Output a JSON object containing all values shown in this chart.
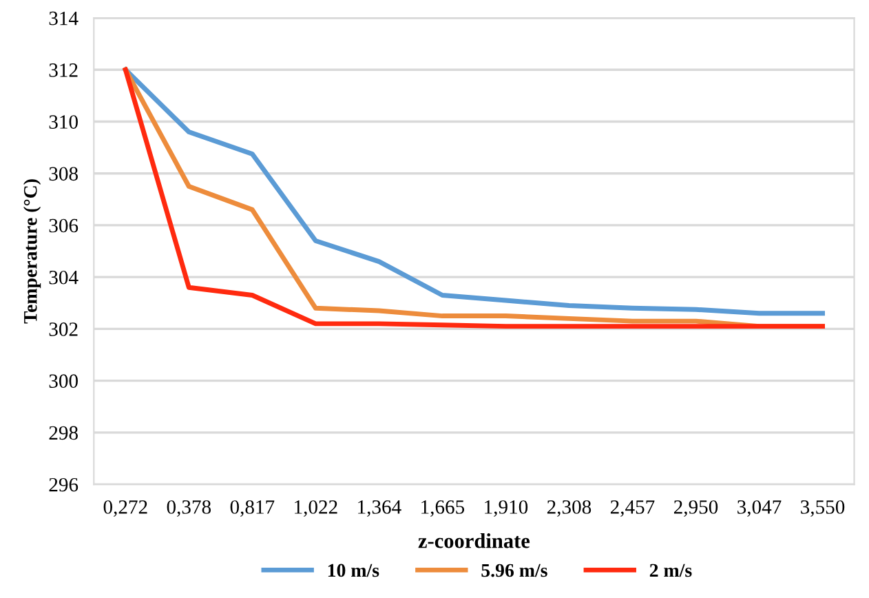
{
  "chart_data": {
    "type": "line",
    "xlabel": "z-coordinate",
    "ylabel": "Temperature (°C)",
    "categories": [
      "0,272",
      "0,378",
      "0,817",
      "1,022",
      "1,364",
      "1,665",
      "1,910",
      "2,308",
      "2,457",
      "2,950",
      "3,047",
      "3,550"
    ],
    "series": [
      {
        "name": "10 m/s",
        "color": "#5b9bd5",
        "values": [
          312,
          309.6,
          308.75,
          305.4,
          304.6,
          303.3,
          303.1,
          302.9,
          302.8,
          302.75,
          302.6,
          302.6
        ]
      },
      {
        "name": "5.96 m/s",
        "color": "#ed8c3c",
        "values": [
          312,
          307.5,
          306.6,
          302.8,
          302.7,
          302.5,
          302.5,
          302.4,
          302.3,
          302.3,
          302.1,
          302.1
        ]
      },
      {
        "name": "2 m/s",
        "color": "#ff2a0f",
        "values": [
          312,
          303.6,
          303.3,
          302.2,
          302.2,
          302.15,
          302.1,
          302.1,
          302.1,
          302.1,
          302.1,
          302.1
        ]
      }
    ],
    "ylim": [
      296,
      314
    ],
    "yticks": [
      296,
      298,
      300,
      302,
      304,
      306,
      308,
      310,
      312,
      314
    ],
    "grid": "y",
    "legend": "bottom",
    "marker": "none",
    "line_style": "solid"
  }
}
